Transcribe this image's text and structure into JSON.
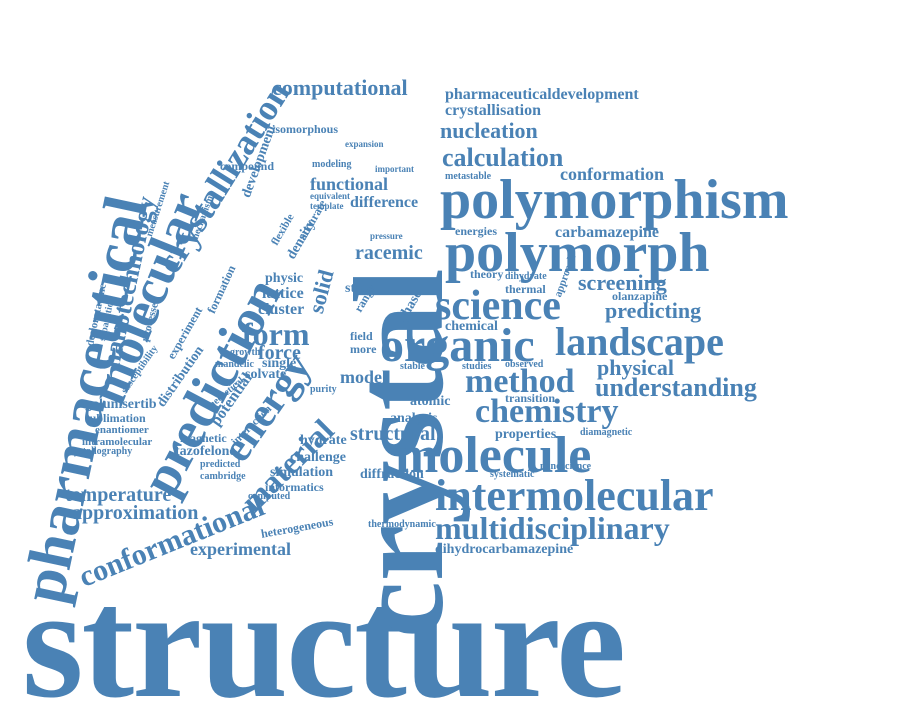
{
  "word_cloud": {
    "color": "#4a82b5",
    "words": [
      {
        "text": "structure"
      },
      {
        "text": "crystal"
      },
      {
        "text": "pharmaceutical"
      },
      {
        "text": "molecular"
      },
      {
        "text": "prediction"
      },
      {
        "text": "crystallization"
      },
      {
        "text": "nanotechnology"
      },
      {
        "text": "polymorphism"
      },
      {
        "text": "polymorph"
      },
      {
        "text": "molecule"
      },
      {
        "text": "intermolecular"
      },
      {
        "text": "multidisciplinary"
      },
      {
        "text": "organic"
      },
      {
        "text": "science"
      },
      {
        "text": "landscape"
      },
      {
        "text": "method"
      },
      {
        "text": "chemistry"
      },
      {
        "text": "understanding"
      },
      {
        "text": "calculation"
      },
      {
        "text": "nucleation"
      },
      {
        "text": "conformation"
      },
      {
        "text": "computational"
      },
      {
        "text": "pharmaceuticaldevelopment"
      },
      {
        "text": "crystallisation"
      },
      {
        "text": "carbamazepine"
      },
      {
        "text": "screening"
      },
      {
        "text": "predicting"
      },
      {
        "text": "physical"
      },
      {
        "text": "olanzapine"
      },
      {
        "text": "form"
      },
      {
        "text": "energy"
      },
      {
        "text": "material"
      },
      {
        "text": "conformational"
      },
      {
        "text": "experimental"
      },
      {
        "text": "temperature"
      },
      {
        "text": "approximation"
      },
      {
        "text": "galunisertib"
      },
      {
        "text": "sublimation"
      },
      {
        "text": "enantiomer"
      },
      {
        "text": "intramolecular"
      },
      {
        "text": "crystallography"
      },
      {
        "text": "tazofelone"
      },
      {
        "text": "magnetic"
      },
      {
        "text": "predicted"
      },
      {
        "text": "cambridge"
      },
      {
        "text": "informatics"
      },
      {
        "text": "computed"
      },
      {
        "text": "heterogeneous"
      },
      {
        "text": "simulation"
      },
      {
        "text": "challenge"
      },
      {
        "text": "hydrate"
      },
      {
        "text": "structural"
      },
      {
        "text": "analysis"
      },
      {
        "text": "diffraction"
      },
      {
        "text": "thermodynamic"
      },
      {
        "text": "dihydrocarbamazepine"
      },
      {
        "text": "properties"
      },
      {
        "text": "diamagnetic"
      },
      {
        "text": "nanoscience"
      },
      {
        "text": "systematic"
      },
      {
        "text": "transition"
      },
      {
        "text": "observed"
      },
      {
        "text": "studies"
      },
      {
        "text": "chemical"
      },
      {
        "text": "thermal"
      },
      {
        "text": "theory"
      },
      {
        "text": "dihydrate"
      },
      {
        "text": "energies"
      },
      {
        "text": "racemic"
      },
      {
        "text": "solid"
      },
      {
        "text": "lattice"
      },
      {
        "text": "cluster"
      },
      {
        "text": "force"
      },
      {
        "text": "solvate"
      },
      {
        "text": "single"
      },
      {
        "text": "potential"
      },
      {
        "text": "distribution"
      },
      {
        "text": "experiment"
      },
      {
        "text": "formation"
      },
      {
        "text": "functional"
      },
      {
        "text": "difference"
      },
      {
        "text": "metastable"
      },
      {
        "text": "isomorphous"
      },
      {
        "text": "compound"
      },
      {
        "text": "development"
      },
      {
        "text": "modeling"
      },
      {
        "text": "equivalent"
      },
      {
        "text": "template"
      },
      {
        "text": "physic"
      },
      {
        "text": "density"
      },
      {
        "text": "accurate"
      },
      {
        "text": "flexible"
      },
      {
        "text": "atomic"
      },
      {
        "text": "state"
      },
      {
        "text": "model"
      },
      {
        "text": "purity"
      },
      {
        "text": "range"
      },
      {
        "text": "phase"
      },
      {
        "text": "field"
      },
      {
        "text": "more"
      },
      {
        "text": "stable"
      },
      {
        "text": "mechanism"
      },
      {
        "text": "measurement"
      },
      {
        "text": "processes"
      },
      {
        "text": "separation"
      },
      {
        "text": "desloratadine"
      },
      {
        "text": "susceptibility"
      },
      {
        "text": "mandelic"
      },
      {
        "text": "theoretical"
      },
      {
        "text": "interaction"
      },
      {
        "text": "growth"
      },
      {
        "text": "approach"
      },
      {
        "text": "pressure"
      },
      {
        "text": "important"
      },
      {
        "text": "expansion"
      }
    ]
  }
}
